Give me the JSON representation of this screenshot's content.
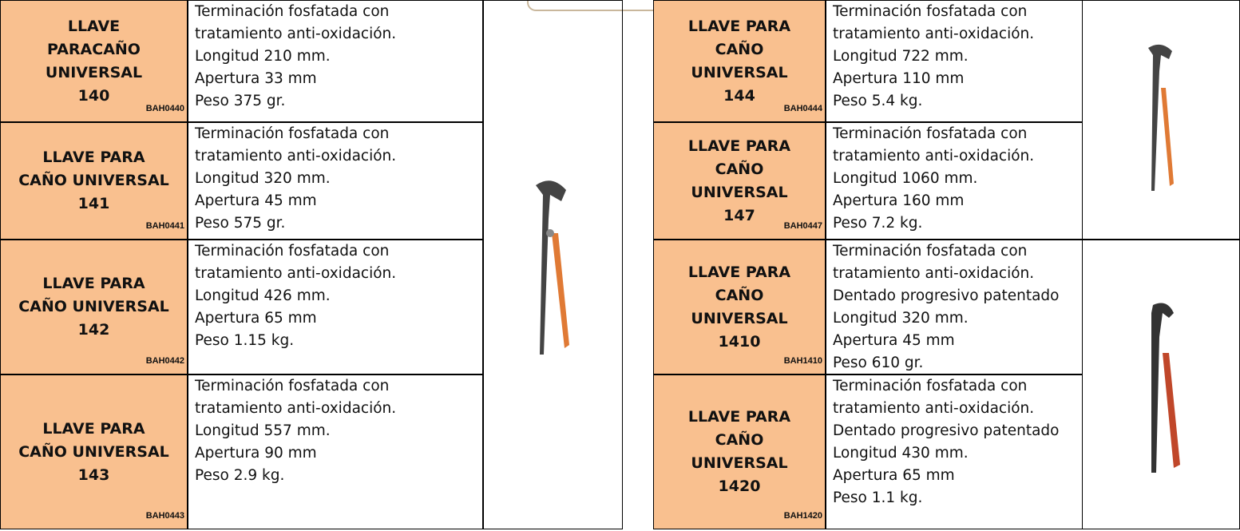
{
  "left": {
    "rows": [
      {
        "title": [
          "LLAVE",
          "PARACAÑO",
          "UNIVERSAL",
          "140"
        ],
        "code": "BAH0440",
        "description": [
          "Terminación fosfatada con",
          "tratamiento anti-oxidación.",
          "Longitud 210 mm.",
          "Apertura 33 mm",
          "Peso 375 gr."
        ]
      },
      {
        "title": [
          "LLAVE PARA",
          "CAÑO UNIVERSAL",
          "141"
        ],
        "code": "BAH0441",
        "description": [
          "Terminación fosfatada con",
          "tratamiento anti-oxidación.",
          "Longitud 320 mm.",
          "Apertura 45 mm",
          "Peso 575 gr."
        ]
      },
      {
        "title": [
          "LLAVE PARA",
          "CAÑO UNIVERSAL",
          "142"
        ],
        "code": "BAH0442",
        "description": [
          "Terminación fosfatada con",
          "tratamiento anti-oxidación.",
          "Longitud 426 mm.",
          "Apertura 65 mm",
          "Peso 1.15 kg."
        ]
      },
      {
        "title": [
          "LLAVE PARA",
          "CAÑO UNIVERSAL",
          "143"
        ],
        "code": "BAH0443",
        "description": [
          "Terminación fosfatada con",
          "tratamiento anti-oxidación.",
          "Longitud 557 mm.",
          "Apertura 90 mm",
          "Peso 2.9 kg."
        ]
      }
    ]
  },
  "right": {
    "rows": [
      {
        "title": [
          "LLAVE PARA",
          "CAÑO",
          "UNIVERSAL",
          "144"
        ],
        "code": "BAH0444",
        "description": [
          "Terminación fosfatada con",
          "tratamiento anti-oxidación.",
          "Longitud 722 mm.",
          "Apertura 110 mm",
          "Peso 5.4 kg."
        ]
      },
      {
        "title": [
          "LLAVE PARA",
          "CAÑO",
          "UNIVERSAL",
          "147"
        ],
        "code": "BAH0447",
        "description": [
          "Terminación fosfatada con",
          "tratamiento anti-oxidación.",
          "Longitud 1060 mm.",
          "Apertura 160 mm",
          "Peso 7.2 kg."
        ]
      },
      {
        "title": [
          "LLAVE PARA",
          "CAÑO",
          "UNIVERSAL",
          "1410"
        ],
        "code": "BAH1410",
        "description": [
          "Terminación fosfatada con",
          "tratamiento anti-oxidación.",
          "Dentado progresivo patentado",
          "Longitud 320 mm.",
          "Apertura 45 mm",
          "Peso 610 gr."
        ]
      },
      {
        "title": [
          "LLAVE PARA",
          "CAÑO",
          "UNIVERSAL",
          "1420"
        ],
        "code": "BAH1420",
        "description": [
          "Terminación fosfatada con",
          "tratamiento anti-oxidación.",
          "Dentado progresivo patentado",
          "Longitud 430 mm.",
          "Apertura 65 mm",
          "Peso 1.1 kg."
        ]
      }
    ]
  }
}
